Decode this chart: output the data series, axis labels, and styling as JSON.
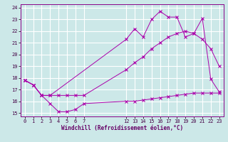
{
  "xlabel": "Windchill (Refroidissement éolien,°C)",
  "bg_color": "#cce8e8",
  "grid_color": "#ffffff",
  "line_color": "#aa00aa",
  "series1_x": [
    0,
    1,
    2,
    3,
    4,
    5,
    6,
    7,
    12,
    13,
    14,
    15,
    16,
    17,
    18,
    19,
    20,
    21,
    22,
    23
  ],
  "series1_y": [
    17.8,
    17.4,
    16.5,
    15.8,
    15.1,
    15.1,
    15.3,
    15.8,
    16.0,
    16.0,
    16.1,
    16.2,
    16.3,
    16.4,
    16.5,
    16.6,
    16.7,
    16.7,
    16.7,
    16.7
  ],
  "series2_x": [
    0,
    1,
    2,
    3,
    4,
    5,
    6,
    7,
    12,
    13,
    14,
    15,
    16,
    17,
    18,
    19,
    20,
    21,
    22,
    23
  ],
  "series2_y": [
    17.8,
    17.4,
    16.5,
    16.5,
    16.5,
    16.5,
    16.5,
    16.5,
    18.7,
    19.3,
    19.8,
    20.5,
    21.0,
    21.5,
    21.8,
    22.0,
    21.8,
    21.3,
    20.5,
    19.0
  ],
  "series3_x": [
    0,
    1,
    2,
    3,
    12,
    13,
    14,
    15,
    16,
    17,
    18,
    19,
    20,
    21,
    22,
    23
  ],
  "series3_y": [
    17.8,
    17.4,
    16.5,
    16.5,
    21.3,
    22.2,
    21.5,
    23.0,
    23.7,
    23.2,
    23.2,
    21.5,
    21.8,
    23.1,
    17.9,
    16.8
  ],
  "ylim": [
    14.7,
    24.3
  ],
  "xlim": [
    -0.5,
    23.5
  ],
  "yticks": [
    15,
    16,
    17,
    18,
    19,
    20,
    21,
    22,
    23,
    24
  ],
  "xticks": [
    0,
    1,
    2,
    3,
    4,
    5,
    6,
    7,
    12,
    13,
    14,
    15,
    16,
    17,
    18,
    19,
    20,
    21,
    22,
    23
  ],
  "tick_fontsize": 5,
  "xlabel_fontsize": 5.5
}
